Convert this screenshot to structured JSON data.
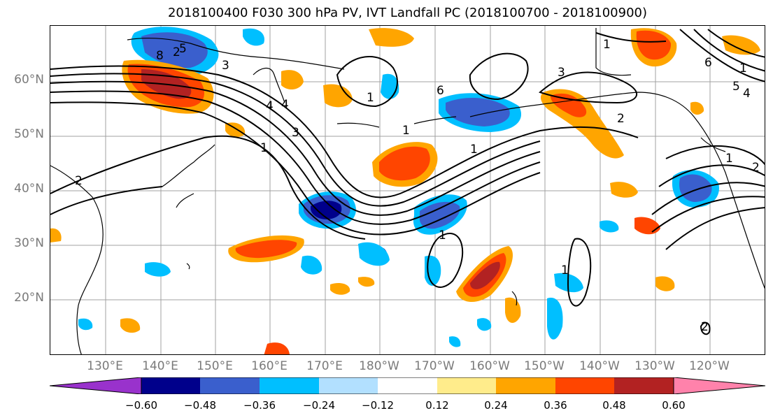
{
  "title": "2018100400 F030 300 hPa PV, IVT Landfall PC (2018100700 - 2018100900)",
  "latitude_labels": [
    "60°N",
    "50°N",
    "40°N",
    "30°N",
    "20°N"
  ],
  "longitude_labels": [
    "130°E",
    "140°E",
    "150°E",
    "160°E",
    "170°E",
    "180°W",
    "170°W",
    "160°W",
    "150°W",
    "140°W",
    "130°W",
    "120°W"
  ],
  "colorbar": {
    "ticks": [
      "−0.60",
      "−0.48",
      "−0.36",
      "−0.24",
      "−0.12",
      "0.12",
      "0.24",
      "0.36",
      "0.48",
      "0.60"
    ],
    "colors": [
      "#9932cc",
      "#00008b",
      "#3a5fcd",
      "#00bfff",
      "#b2e0ff",
      "#ffffff",
      "#ffec8b",
      "#ffa500",
      "#ff4500",
      "#b22222",
      "#ff82ab"
    ]
  },
  "contour_labels": [
    "1",
    "2",
    "3",
    "4",
    "5",
    "6",
    "8"
  ],
  "contour_label_instances": [
    "2",
    "3",
    "4",
    "3",
    "1",
    "2",
    "1",
    "1",
    "6",
    "1",
    "3",
    "1",
    "2",
    "1",
    "1",
    "5",
    "4",
    "6",
    "1",
    "2",
    "1",
    "8",
    "5",
    "2",
    "4"
  ]
}
